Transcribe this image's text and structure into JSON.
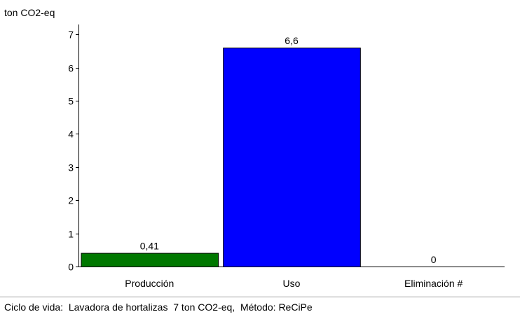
{
  "chart_data": {
    "type": "bar",
    "ylabel": "ton CO2-eq",
    "categories": [
      "Producción",
      "Uso",
      "Eliminación #"
    ],
    "values": [
      0.41,
      6.6,
      0
    ],
    "value_labels": [
      "0,41",
      "6,6",
      "0"
    ],
    "colors": [
      "#007800",
      "#0000ff",
      "#ffffff"
    ],
    "ylim": [
      0,
      7.3
    ],
    "yticks": [
      0,
      1,
      2,
      3,
      4,
      5,
      6,
      7
    ],
    "ytick_labels": [
      "0",
      "1",
      "2",
      "3",
      "4",
      "5",
      "6",
      "7"
    ],
    "grid": false,
    "legend": "none"
  },
  "caption": "Ciclo de vida:  Lavadora de hortalizas  7 ton CO2-eq,  Método: ReCiPe"
}
